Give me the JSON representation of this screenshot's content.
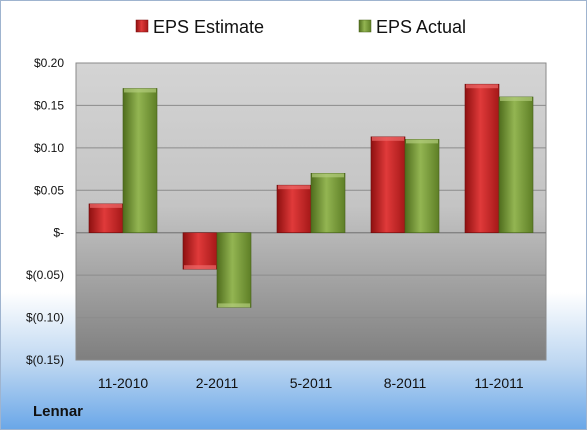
{
  "company": "Lennar",
  "colors": {
    "estimate": "#d42b2b",
    "actual": "#7f9f3b"
  },
  "chart_data": {
    "type": "bar",
    "categories": [
      "11-2010",
      "2-2011",
      "5-2011",
      "8-2011",
      "11-2011"
    ],
    "series": [
      {
        "name": "EPS Estimate",
        "values": [
          0.034,
          -0.043,
          0.056,
          0.113,
          0.175
        ]
      },
      {
        "name": "EPS Actual",
        "values": [
          0.17,
          -0.088,
          0.07,
          0.11,
          0.16
        ]
      }
    ],
    "yticks": [
      0.2,
      0.15,
      0.1,
      0.05,
      0,
      -0.05,
      -0.1,
      -0.15
    ],
    "ytick_labels": [
      "$0.20",
      "$0.15",
      "$0.10",
      "$0.05",
      "$-",
      "$(0.05)",
      "$(0.10)",
      "$(0.15)"
    ],
    "ylim": [
      -0.15,
      0.2
    ],
    "grid": true,
    "legend_position": "top"
  }
}
